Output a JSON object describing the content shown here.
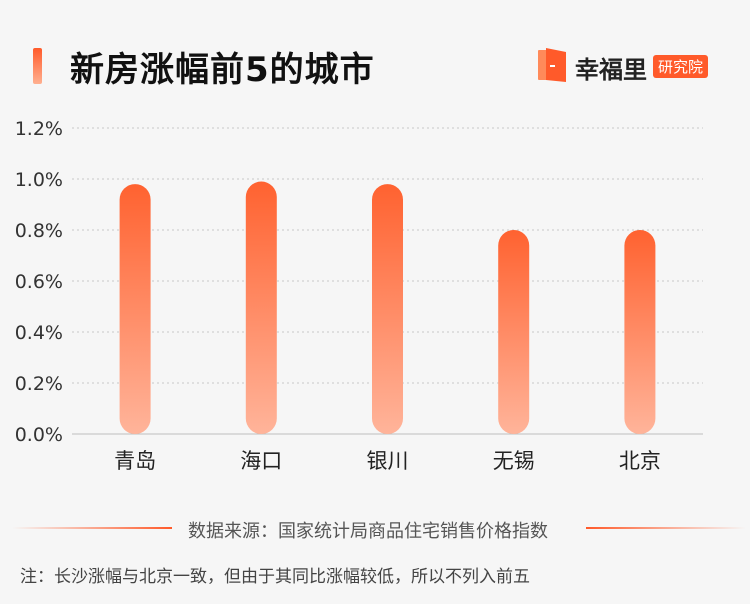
{
  "header": {
    "title": "新房涨幅前5的城市",
    "brand_name": "幸福里",
    "brand_sub": "研究院"
  },
  "colors": {
    "accent": "#ff5a2a",
    "bar_top": "#ff6230",
    "bar_bottom": "#ffb49a",
    "grid": "#c8c8c8"
  },
  "chart_data": {
    "type": "bar",
    "categories": [
      "青岛",
      "海口",
      "银川",
      "无锡",
      "北京"
    ],
    "values": [
      0.98,
      0.99,
      0.98,
      0.8,
      0.8
    ],
    "yticks": [
      "0.0%",
      "0.2%",
      "0.4%",
      "0.6%",
      "0.8%",
      "1.0%",
      "1.2%"
    ],
    "ylim": [
      0,
      1.2
    ],
    "ylabel": "",
    "xlabel": "",
    "grid": true
  },
  "footer": {
    "source": "数据来源：国家统计局商品住宅销售价格指数",
    "note": "注：长沙涨幅与北京一致，但由于其同比涨幅较低，所以不列入前五"
  }
}
